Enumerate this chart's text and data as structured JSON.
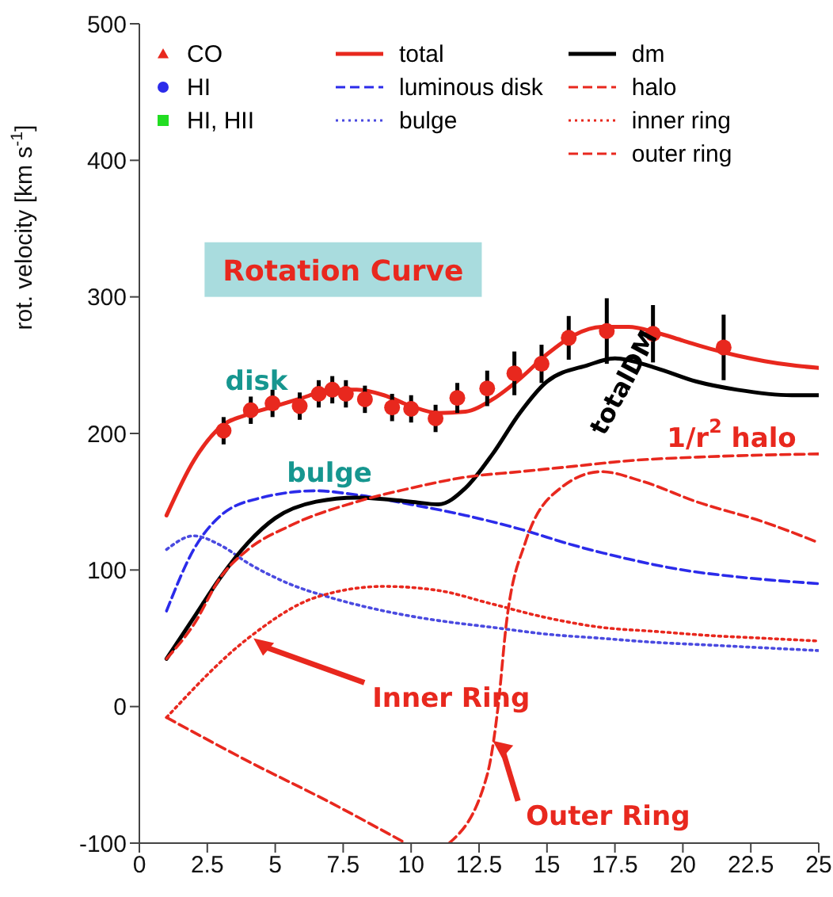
{
  "chart_data": {
    "type": "line",
    "title": "Rotation Curve",
    "ylabel": "rot. velocity [km s$^{-1}$]",
    "xlim": [
      0,
      25
    ],
    "xticks": [
      0,
      2.5,
      5,
      7.5,
      10,
      12.5,
      15,
      17.5,
      20,
      22.5,
      25
    ],
    "ylim": [
      -100,
      500
    ],
    "yticks": [
      -100,
      0,
      100,
      200,
      300,
      400,
      500
    ],
    "grid": false,
    "legend": "top",
    "marker": "none",
    "series": [
      {
        "type": "scatter",
        "color": "#e8281e",
        "marker": "circle",
        "x": [
          3.1,
          4.1,
          4.9,
          5.9,
          6.6,
          7.1,
          7.6,
          8.3,
          9.3,
          10.0,
          10.9,
          11.7,
          12.8,
          13.8,
          14.8,
          15.8,
          17.2,
          18.9,
          21.5
        ],
        "values": [
          202,
          217,
          222,
          220,
          229,
          232,
          229,
          225,
          219,
          218,
          211,
          226,
          233,
          244,
          251,
          270,
          275,
          273,
          263
        ],
        "errors": [
          10,
          10,
          10,
          10,
          10,
          10,
          10,
          10,
          10,
          10,
          10,
          11,
          13,
          16,
          14,
          16,
          24,
          21,
          24
        ]
      },
      {
        "type": "scatter",
        "name": "CO",
        "color": "#e8281e",
        "marker": "triangle"
      },
      {
        "type": "scatter",
        "name": "HI",
        "color": "#2b2bea",
        "marker": "circle"
      },
      {
        "type": "scatter",
        "name": "HI, HII",
        "color": "#22dd22",
        "marker": "square"
      },
      {
        "name": "total",
        "color": "#e8281e",
        "line_style": "solid",
        "x": [
          1,
          2,
          3,
          4,
          5,
          6,
          7,
          8,
          9,
          10,
          11,
          12,
          13,
          14,
          15,
          16,
          17,
          18,
          19,
          20,
          21,
          22,
          23,
          24,
          25
        ],
        "values": [
          140,
          180,
          205,
          214,
          220,
          226,
          232,
          232,
          228,
          220,
          215,
          216,
          225,
          240,
          258,
          272,
          278,
          278,
          274,
          268,
          262,
          257,
          253,
          250,
          248
        ]
      },
      {
        "name": "luminous disk",
        "color": "#2b2bea",
        "line_style": "dashed",
        "x": [
          1,
          2,
          3,
          4.5,
          6.5,
          8,
          10,
          12,
          14,
          16,
          18,
          20,
          22,
          25
        ],
        "values": [
          70,
          115,
          140,
          153,
          158,
          155,
          148,
          140,
          130,
          118,
          108,
          100,
          95,
          90
        ]
      },
      {
        "name": "bulge",
        "color": "#4a4ae0",
        "line_style": "dotted",
        "x": [
          1,
          2,
          3,
          4,
          5.5,
          7,
          9,
          11,
          13,
          15,
          17,
          19,
          21,
          23,
          25
        ],
        "values": [
          115,
          125,
          118,
          105,
          90,
          80,
          70,
          63,
          58,
          53,
          50,
          47,
          45,
          43,
          41
        ]
      },
      {
        "name": "dm",
        "color": "#000000",
        "line_style": "solid",
        "x": [
          1,
          2,
          3,
          4,
          5,
          6.5,
          8,
          10,
          11,
          12,
          13,
          14,
          15,
          16.5,
          17.5,
          19,
          20.5,
          22,
          24,
          25
        ],
        "values": [
          35,
          65,
          95,
          120,
          138,
          150,
          153,
          150,
          148,
          160,
          185,
          215,
          238,
          250,
          255,
          248,
          238,
          232,
          228,
          228
        ]
      },
      {
        "name": "halo",
        "color": "#e8281e",
        "line_style": "dashed",
        "x": [
          1,
          2,
          3,
          4,
          5.5,
          8,
          10,
          12,
          14,
          16,
          18,
          21,
          25
        ],
        "values": [
          35,
          60,
          95,
          115,
          132,
          150,
          160,
          168,
          172,
          176,
          180,
          183,
          185
        ]
      },
      {
        "name": "inner ring",
        "color": "#e8281e",
        "line_style": "dotted",
        "x": [
          1,
          4,
          6.5,
          9,
          11,
          13,
          15,
          17,
          19,
          21,
          23,
          25
        ],
        "values": [
          -8,
          50,
          80,
          88,
          85,
          75,
          65,
          58,
          55,
          52,
          50,
          48
        ]
      },
      {
        "name": "outer ring",
        "color": "#e8281e",
        "line_style": "dashed",
        "x": [
          1,
          4,
          7,
          9.8,
          10.6,
          11.4,
          12.8,
          13.2,
          13.5,
          14.2,
          15.5,
          17,
          18.5,
          20.5,
          23,
          25
        ],
        "values": [
          -8,
          -40,
          -70,
          -100,
          null,
          -100,
          -50,
          0,
          60,
          120,
          160,
          172,
          165,
          150,
          135,
          120
        ]
      }
    ],
    "annotations": [
      "disk",
      "bulge",
      "totalDM",
      "1/r$^{2}$ halo",
      {
        "text": "Inner Ring",
        "x": 4.2,
        "y": 50
      },
      {
        "text": "Outer Ring",
        "x": 13.0,
        "y": -25
      }
    ]
  }
}
